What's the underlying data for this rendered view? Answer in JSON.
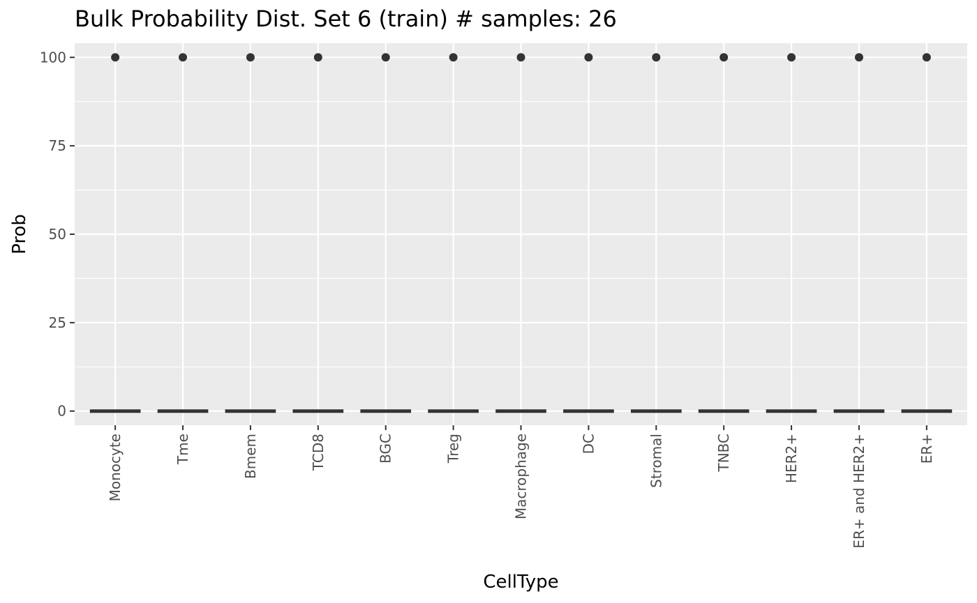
{
  "chart_data": {
    "type": "boxplot",
    "title": "Bulk Probability Dist. Set 6 (train) # samples: 26",
    "xlabel": "CellType",
    "ylabel": "Prob",
    "ylim": [
      -4,
      104
    ],
    "yticks": [
      0,
      25,
      50,
      75,
      100
    ],
    "ytick_labels": [
      "0",
      "25",
      "50",
      "75",
      "100"
    ],
    "categories": [
      "Monocyte",
      "Tme",
      "Bmem",
      "TCD8",
      "BGC",
      "Treg",
      "Macrophage",
      "DC",
      "Stromal",
      "TNBC",
      "HER2+",
      "ER+ and HER2+",
      "ER+"
    ],
    "box_values": [
      0,
      0,
      0,
      0,
      0,
      0,
      0,
      0,
      0,
      0,
      0,
      0,
      0
    ],
    "outliers": [
      [
        100
      ],
      [
        100
      ],
      [
        100
      ],
      [
        100
      ],
      [
        100
      ],
      [
        100
      ],
      [
        100
      ],
      [
        100
      ],
      [
        100
      ],
      [
        100
      ],
      [
        100
      ],
      [
        100
      ],
      [
        100
      ]
    ],
    "grid": true,
    "colors": {
      "panel": "#ebebeb",
      "grid": "#ffffff",
      "mark": "#333333",
      "tick_text": "#4d4d4d",
      "tick": "#333333"
    }
  }
}
